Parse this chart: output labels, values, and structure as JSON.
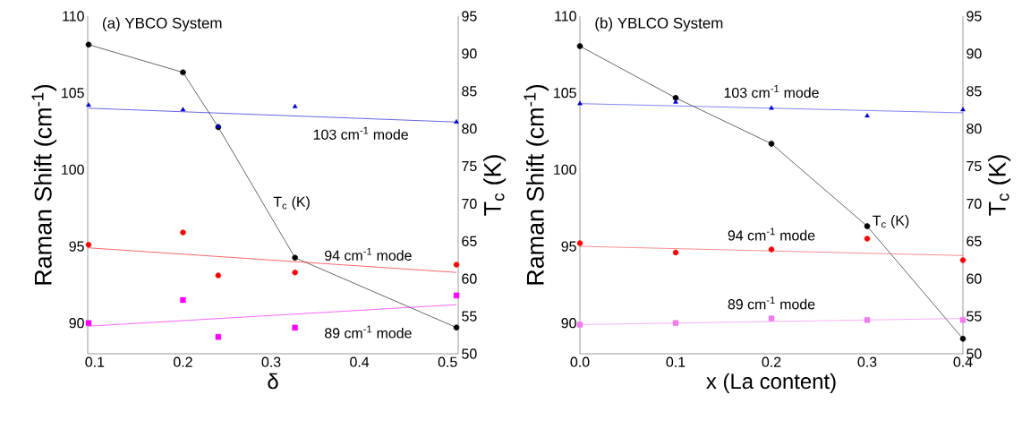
{
  "chart_data": [
    {
      "type": "scatter",
      "title": "(a) YBCO System",
      "xlabel": "δ",
      "ylabel": "Raman Shift (cm$^{-1}$)",
      "y2label": "T$_{c}$ (K)",
      "xlim": [
        0.092,
        0.512
      ],
      "ylim": [
        88,
        110
      ],
      "y2lim": [
        50,
        95
      ],
      "xticks": [
        0.1,
        0.2,
        0.3,
        0.4,
        0.5
      ],
      "yticks": [
        90,
        95,
        100,
        105,
        110
      ],
      "y2ticks": [
        50,
        55,
        60,
        65,
        70,
        75,
        80,
        85,
        90,
        95
      ],
      "x": [
        0.093,
        0.2,
        0.24,
        0.327,
        0.51
      ],
      "series": [
        {
          "name": "T$_{c}$ (K)",
          "type": "line",
          "axis": "y2",
          "marker": "circle",
          "color": "#000000",
          "values": [
            91.2,
            87.5,
            80.2,
            62.8,
            53.5
          ]
        },
        {
          "marker": "triangle",
          "color": "#0000cc",
          "values": [
            104.2,
            103.9,
            102.8,
            104.1,
            103.1
          ]
        },
        {
          "name": "103 cm$^{-1}$ mode",
          "type": "line",
          "marker": "none",
          "color": "#0000cc",
          "x": [
            0.093,
            0.51
          ],
          "values": [
            104.0,
            103.1
          ]
        },
        {
          "marker": "circle",
          "color": "#ff0000",
          "values": [
            95.1,
            95.9,
            93.1,
            93.3,
            93.8
          ]
        },
        {
          "name": "94 cm$^{-1}$ mode",
          "type": "line",
          "marker": "none",
          "color": "#ff0000",
          "x": [
            0.093,
            0.51
          ],
          "values": [
            94.9,
            93.3
          ]
        },
        {
          "marker": "square",
          "color": "#ff00ff",
          "values": [
            90.0,
            91.5,
            89.1,
            89.7,
            91.8
          ]
        },
        {
          "name": "89 cm$^{-1}$ mode",
          "type": "line",
          "marker": "none",
          "color": "#ff00ff",
          "x": [
            0.093,
            0.51
          ],
          "values": [
            89.8,
            91.2
          ]
        }
      ]
    },
    {
      "type": "scatter",
      "title": "(b) YBLCO System",
      "xlabel": "x (La content)",
      "ylabel": "Raman Shift (cm$^{-1}$)",
      "y2label": "T$_{c}$ (K)",
      "xlim": [
        0,
        0.4
      ],
      "ylim": [
        88,
        110
      ],
      "y2lim": [
        50,
        95
      ],
      "xticks": [
        {
          "value": 0,
          "label": "0.0"
        },
        0.1,
        0.2,
        0.3,
        0.4
      ],
      "yticks": [
        90,
        95,
        100,
        105,
        110
      ],
      "y2ticks": [
        50,
        55,
        60,
        65,
        70,
        75,
        80,
        85,
        90,
        95
      ],
      "x": [
        0,
        0.1,
        0.2,
        0.3,
        0.4
      ],
      "series": [
        {
          "name": "T$_{c}$ (K)",
          "type": "line",
          "axis": "y2",
          "marker": "circle",
          "color": "#000000",
          "values": [
            91.0,
            84.1,
            78.0,
            67.0,
            52.0
          ]
        },
        {
          "marker": "triangle",
          "color": "#0000cc",
          "values": [
            104.3,
            104.4,
            104.0,
            103.5,
            103.9
          ]
        },
        {
          "name": "103 cm$^{-1}$ mode",
          "type": "line",
          "marker": "none",
          "color": "#3333ee",
          "x": [
            0,
            0.4
          ],
          "values": [
            104.3,
            103.7
          ]
        },
        {
          "marker": "circle",
          "color": "#ff0000",
          "values": [
            95.2,
            94.6,
            94.8,
            95.5,
            94.1
          ]
        },
        {
          "name": "94 cm$^{-1}$ mode",
          "type": "line",
          "marker": "none",
          "color": "#ee4444",
          "x": [
            0,
            0.4
          ],
          "values": [
            95.0,
            94.4
          ]
        },
        {
          "marker": "square",
          "color": "#f07cf0",
          "values": [
            89.9,
            90.0,
            90.3,
            90.2,
            90.2
          ]
        },
        {
          "name": "89 cm$^{-1}$ mode",
          "type": "line",
          "marker": "none",
          "color": "#f07cf0",
          "x": [
            0,
            0.4
          ],
          "values": [
            89.9,
            90.3
          ]
        }
      ]
    }
  ]
}
